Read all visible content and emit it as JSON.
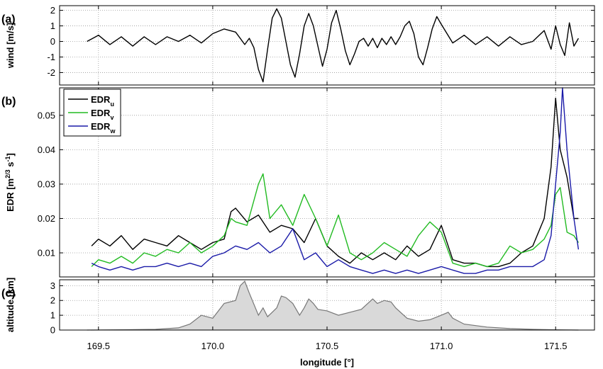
{
  "chart_data": [
    {
      "panel": "(a)",
      "type": "line",
      "ylabel": "wind [m/s]",
      "xlim": [
        169.33,
        171.67
      ],
      "ylim": [
        -2.8,
        2.3
      ],
      "yticks": [
        -2,
        -1,
        0,
        1,
        2
      ],
      "grid": true,
      "series": [
        {
          "color": "#000000",
          "x": [
            169.45,
            169.5,
            169.55,
            169.6,
            169.65,
            169.7,
            169.75,
            169.8,
            169.85,
            169.9,
            169.95,
            170.0,
            170.05,
            170.1,
            170.12,
            170.14,
            170.16,
            170.18,
            170.2,
            170.22,
            170.24,
            170.26,
            170.28,
            170.3,
            170.32,
            170.34,
            170.36,
            170.38,
            170.4,
            170.42,
            170.44,
            170.46,
            170.48,
            170.5,
            170.52,
            170.54,
            170.56,
            170.58,
            170.6,
            170.62,
            170.64,
            170.66,
            170.68,
            170.7,
            170.72,
            170.74,
            170.76,
            170.78,
            170.8,
            170.82,
            170.84,
            170.86,
            170.88,
            170.9,
            170.92,
            170.94,
            170.96,
            170.98,
            171.0,
            171.05,
            171.1,
            171.15,
            171.2,
            171.25,
            171.3,
            171.35,
            171.4,
            171.45,
            171.48,
            171.5,
            171.52,
            171.54,
            171.56,
            171.58,
            171.6
          ],
          "y": [
            0.0,
            0.4,
            -0.2,
            0.3,
            -0.3,
            0.3,
            -0.2,
            0.3,
            0.0,
            0.4,
            -0.1,
            0.5,
            0.8,
            0.6,
            0.2,
            -0.2,
            0.2,
            -0.4,
            -1.8,
            -2.6,
            -0.5,
            1.5,
            2.1,
            1.5,
            0.0,
            -1.5,
            -2.3,
            -0.8,
            1.0,
            1.8,
            1.0,
            -0.3,
            -1.6,
            -0.5,
            1.2,
            2.0,
            0.8,
            -0.6,
            -1.5,
            -0.8,
            0.0,
            0.2,
            -0.3,
            0.2,
            -0.4,
            0.2,
            -0.2,
            0.3,
            -0.2,
            0.3,
            1.0,
            1.3,
            0.5,
            -1.0,
            -1.5,
            -0.4,
            0.8,
            1.6,
            1.1,
            -0.1,
            0.4,
            -0.2,
            0.3,
            -0.3,
            0.3,
            -0.2,
            0.0,
            0.7,
            -0.5,
            1.0,
            -0.2,
            -0.9,
            1.2,
            -0.3,
            0.2
          ]
        }
      ]
    },
    {
      "panel": "(b)",
      "type": "line",
      "ylabel": "EDR [m2/3 s-1]",
      "ylabel_parts": [
        "EDR [m",
        "2/3",
        " s",
        "-1",
        "]"
      ],
      "xlim": [
        169.33,
        171.67
      ],
      "ylim": [
        0.003,
        0.058
      ],
      "yticks": [
        0.01,
        0.02,
        0.03,
        0.04,
        0.05
      ],
      "yticklabels": [
        "0.01",
        "0.02",
        "0.03",
        "0.04",
        "0.05"
      ],
      "grid": true,
      "legend": "top-left",
      "series": [
        {
          "name": "EDRu",
          "name_base": "EDR",
          "name_sub": "u",
          "color": "#000000",
          "x": [
            169.47,
            169.5,
            169.55,
            169.6,
            169.65,
            169.7,
            169.75,
            169.8,
            169.85,
            169.9,
            169.95,
            170.0,
            170.05,
            170.08,
            170.1,
            170.15,
            170.2,
            170.25,
            170.3,
            170.35,
            170.4,
            170.45,
            170.5,
            170.55,
            170.6,
            170.65,
            170.7,
            170.75,
            170.8,
            170.85,
            170.9,
            170.95,
            171.0,
            171.05,
            171.1,
            171.15,
            171.2,
            171.25,
            171.3,
            171.35,
            171.4,
            171.45,
            171.48,
            171.5,
            171.52,
            171.55,
            171.58,
            171.6
          ],
          "y": [
            0.012,
            0.014,
            0.012,
            0.015,
            0.011,
            0.014,
            0.013,
            0.012,
            0.015,
            0.013,
            0.011,
            0.013,
            0.014,
            0.022,
            0.023,
            0.019,
            0.021,
            0.016,
            0.018,
            0.017,
            0.013,
            0.02,
            0.012,
            0.009,
            0.007,
            0.01,
            0.008,
            0.01,
            0.008,
            0.012,
            0.009,
            0.011,
            0.018,
            0.008,
            0.007,
            0.007,
            0.006,
            0.006,
            0.007,
            0.01,
            0.012,
            0.02,
            0.035,
            0.055,
            0.04,
            0.032,
            0.02,
            0.02
          ]
        },
        {
          "name": "EDRv",
          "name_base": "EDR",
          "name_sub": "v",
          "color": "#22bb22",
          "x": [
            169.47,
            169.5,
            169.55,
            169.6,
            169.65,
            169.7,
            169.75,
            169.8,
            169.85,
            169.9,
            169.95,
            170.0,
            170.05,
            170.08,
            170.1,
            170.15,
            170.2,
            170.22,
            170.25,
            170.3,
            170.35,
            170.4,
            170.45,
            170.5,
            170.55,
            170.6,
            170.65,
            170.7,
            170.75,
            170.8,
            170.85,
            170.9,
            170.95,
            171.0,
            171.05,
            171.1,
            171.15,
            171.2,
            171.25,
            171.3,
            171.35,
            171.4,
            171.45,
            171.48,
            171.5,
            171.52,
            171.55,
            171.58,
            171.6
          ],
          "y": [
            0.006,
            0.008,
            0.007,
            0.009,
            0.007,
            0.01,
            0.009,
            0.011,
            0.01,
            0.013,
            0.01,
            0.012,
            0.015,
            0.02,
            0.019,
            0.018,
            0.03,
            0.033,
            0.02,
            0.024,
            0.018,
            0.027,
            0.02,
            0.012,
            0.021,
            0.01,
            0.008,
            0.01,
            0.013,
            0.011,
            0.009,
            0.015,
            0.019,
            0.016,
            0.007,
            0.006,
            0.007,
            0.006,
            0.007,
            0.012,
            0.01,
            0.011,
            0.014,
            0.018,
            0.027,
            0.029,
            0.016,
            0.015,
            0.013
          ]
        },
        {
          "name": "EDRw",
          "name_base": "EDR",
          "name_sub": "w",
          "color": "#1a1aa8",
          "x": [
            169.47,
            169.5,
            169.55,
            169.6,
            169.65,
            169.7,
            169.75,
            169.8,
            169.85,
            169.9,
            169.95,
            170.0,
            170.05,
            170.1,
            170.15,
            170.2,
            170.25,
            170.3,
            170.35,
            170.4,
            170.45,
            170.5,
            170.55,
            170.6,
            170.65,
            170.7,
            170.75,
            170.8,
            170.85,
            170.9,
            170.95,
            171.0,
            171.05,
            171.1,
            171.15,
            171.2,
            171.25,
            171.3,
            171.35,
            171.4,
            171.45,
            171.48,
            171.5,
            171.52,
            171.53,
            171.55,
            171.58,
            171.6
          ],
          "y": [
            0.007,
            0.006,
            0.005,
            0.006,
            0.005,
            0.006,
            0.006,
            0.007,
            0.006,
            0.007,
            0.006,
            0.009,
            0.01,
            0.012,
            0.011,
            0.013,
            0.01,
            0.012,
            0.017,
            0.008,
            0.01,
            0.006,
            0.008,
            0.006,
            0.005,
            0.004,
            0.005,
            0.004,
            0.005,
            0.004,
            0.005,
            0.006,
            0.005,
            0.004,
            0.004,
            0.005,
            0.005,
            0.006,
            0.006,
            0.006,
            0.008,
            0.015,
            0.03,
            0.045,
            0.058,
            0.04,
            0.02,
            0.011
          ]
        }
      ]
    },
    {
      "panel": "(c)",
      "type": "area",
      "ylabel": "altitude [km]",
      "xlabel": "longitude [°]",
      "xlim": [
        169.33,
        171.67
      ],
      "ylim": [
        0,
        3.4
      ],
      "yticks": [
        0,
        1,
        2,
        3
      ],
      "xticks": [
        169.5,
        170.0,
        170.5,
        171.0,
        171.5
      ],
      "xticklabels": [
        "169.5",
        "170.0",
        "170.5",
        "171.0",
        "171.5"
      ],
      "grid": true,
      "series": [
        {
          "color": "#777777",
          "fill": "#d9d9d9",
          "x": [
            169.45,
            169.6,
            169.75,
            169.85,
            169.9,
            169.95,
            170.0,
            170.05,
            170.1,
            170.12,
            170.14,
            170.16,
            170.2,
            170.22,
            170.24,
            170.26,
            170.28,
            170.3,
            170.32,
            170.35,
            170.38,
            170.4,
            170.42,
            170.44,
            170.46,
            170.5,
            170.55,
            170.6,
            170.65,
            170.7,
            170.72,
            170.75,
            170.78,
            170.8,
            170.85,
            170.9,
            170.95,
            171.0,
            171.03,
            171.05,
            171.1,
            171.2,
            171.3,
            171.4,
            171.5,
            171.6
          ],
          "y": [
            0.0,
            0.02,
            0.05,
            0.15,
            0.4,
            1.0,
            0.8,
            1.8,
            2.0,
            3.0,
            3.3,
            2.5,
            1.0,
            1.5,
            0.9,
            1.2,
            1.5,
            2.3,
            2.2,
            1.8,
            1.0,
            1.5,
            2.1,
            1.8,
            1.4,
            1.3,
            1.0,
            1.2,
            1.4,
            2.1,
            1.8,
            2.0,
            1.9,
            1.5,
            0.8,
            0.6,
            0.7,
            1.0,
            1.2,
            0.8,
            0.4,
            0.2,
            0.1,
            0.05,
            0.02,
            0.0
          ]
        }
      ]
    }
  ]
}
